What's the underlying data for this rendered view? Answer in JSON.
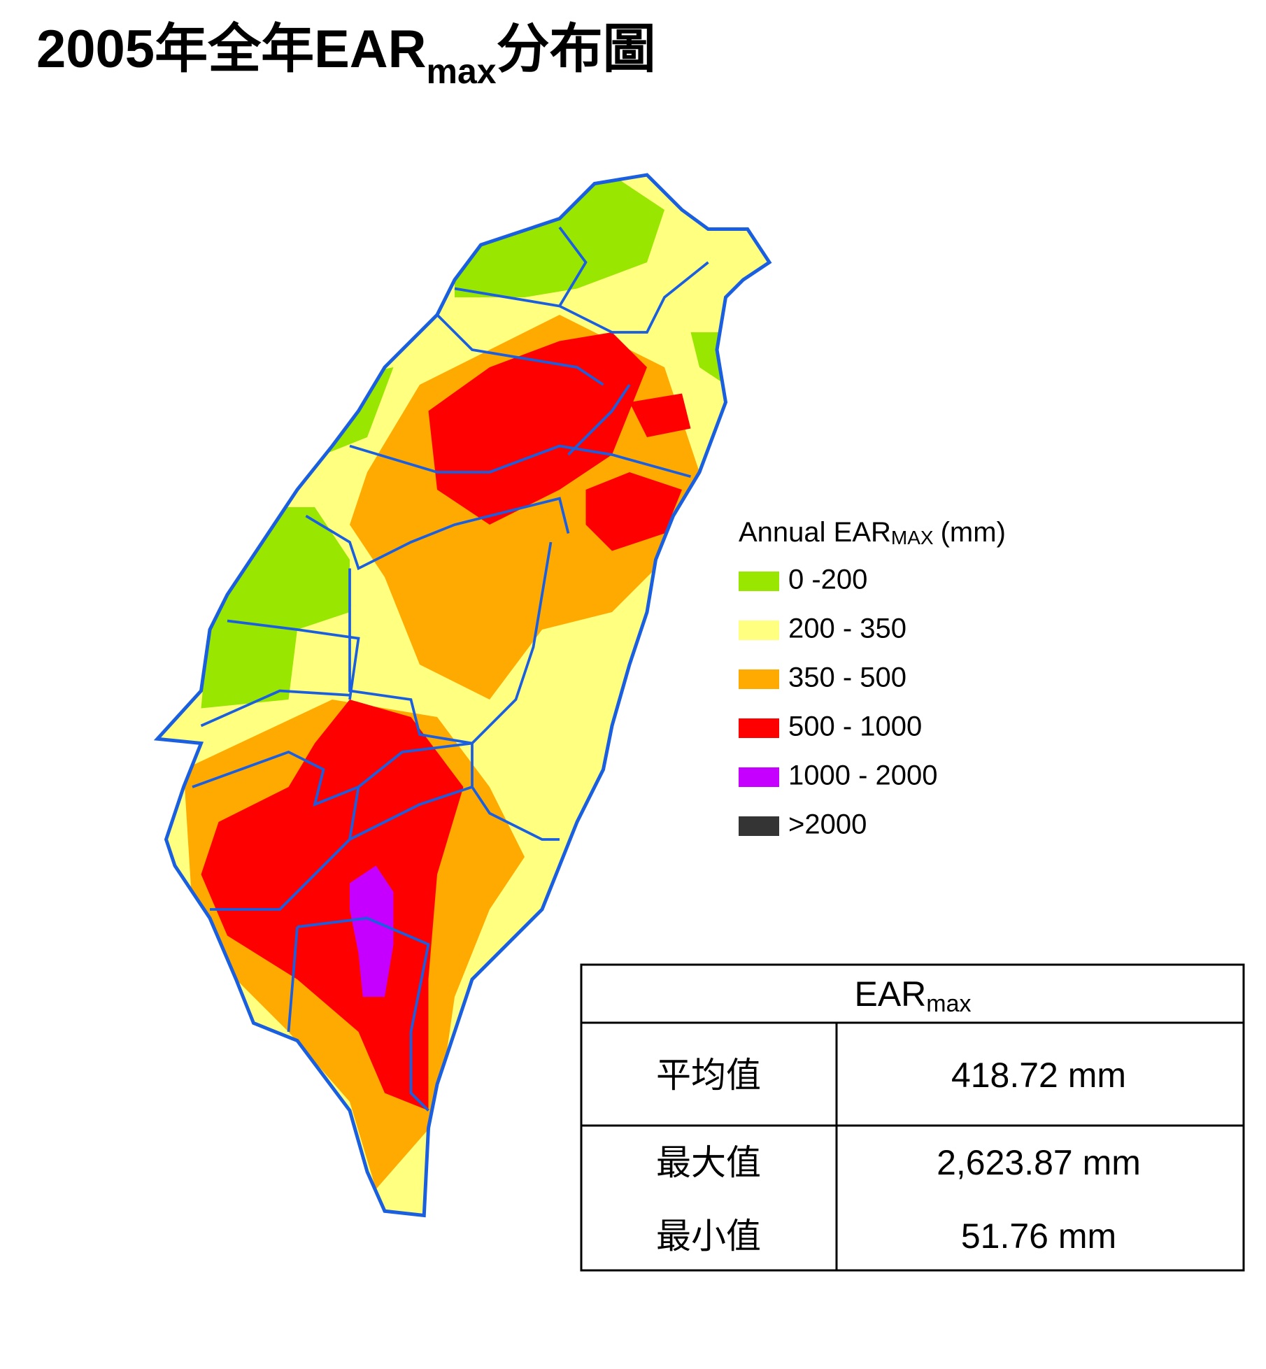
{
  "title": {
    "main": "2005年全年EAR",
    "sub": "max",
    "tail": "分布圖"
  },
  "legend": {
    "title": "Annual EAR",
    "title_sub": "MAX",
    "title_unit": "(mm)",
    "items": [
      {
        "label": "0 -200",
        "color": "#99e600"
      },
      {
        "label": "200 - 350",
        "color": "#ffff80"
      },
      {
        "label": "350 - 500",
        "color": "#ffaa00"
      },
      {
        "label": "500 - 1000",
        "color": "#ff0000"
      },
      {
        "label": "1000 - 2000",
        "color": "#c500ff"
      },
      {
        "label": ">2000",
        "color": "#343434"
      }
    ]
  },
  "table": {
    "header": "EAR",
    "header_sub": "max",
    "rows": [
      [
        "平均值",
        "418.72 mm"
      ],
      [
        "最大值",
        "2,623.87 mm"
      ],
      [
        "最小值",
        "51.76 mm"
      ]
    ]
  }
}
